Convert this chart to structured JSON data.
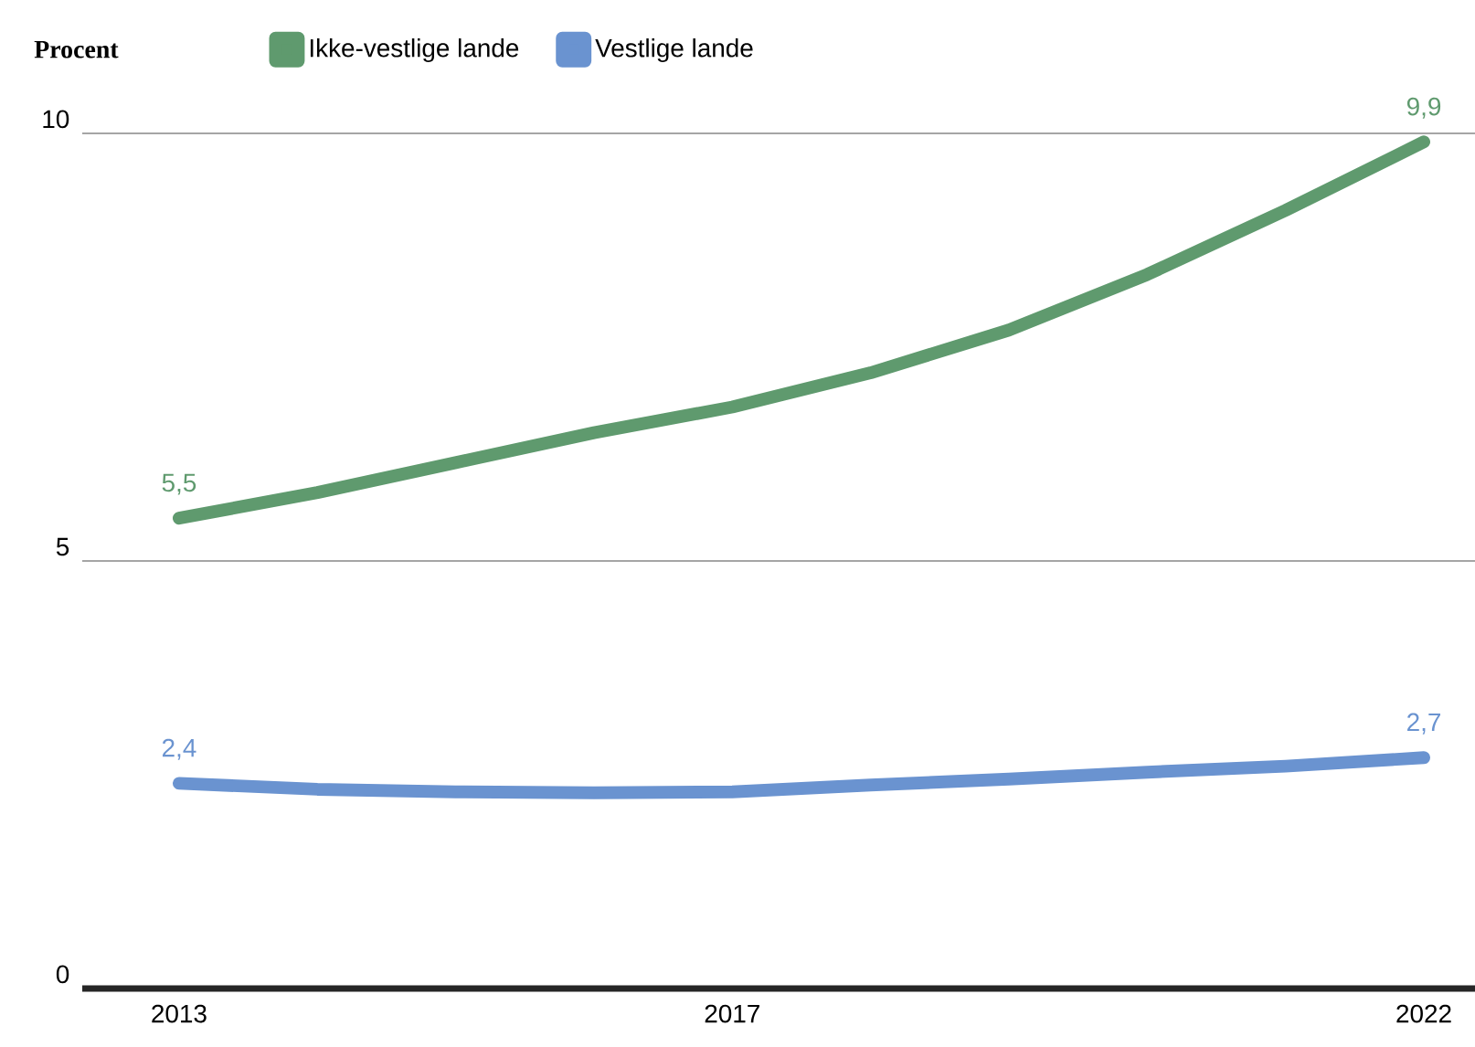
{
  "chart_data": {
    "type": "line",
    "ylabel": "Procent",
    "x": [
      2013,
      2014,
      2015,
      2016,
      2017,
      2018,
      2019,
      2020,
      2021,
      2022
    ],
    "series": [
      {
        "name": "Ikke-vestlige lande",
        "color": "#5f9a6e",
        "values": [
          5.5,
          5.8,
          6.15,
          6.5,
          6.8,
          7.2,
          7.7,
          8.35,
          9.1,
          9.9
        ],
        "value_labels": [
          "5,5",
          null,
          null,
          null,
          null,
          null,
          null,
          null,
          null,
          "9,9"
        ]
      },
      {
        "name": "Vestlige lande",
        "color": "#6a93d0",
        "values": [
          2.4,
          2.33,
          2.3,
          2.29,
          2.3,
          2.38,
          2.45,
          2.53,
          2.6,
          2.7
        ],
        "value_labels": [
          "2,4",
          null,
          null,
          null,
          null,
          null,
          null,
          null,
          null,
          "2,7"
        ]
      }
    ],
    "xlim": [
      2012.3,
      2022.37
    ],
    "ylim": [
      0,
      10
    ],
    "xticks": [
      2013,
      2017,
      2022
    ],
    "yticks": [
      0,
      5,
      10
    ],
    "grid": "y",
    "legend": "top",
    "line_style": "solid",
    "marker": "none"
  }
}
